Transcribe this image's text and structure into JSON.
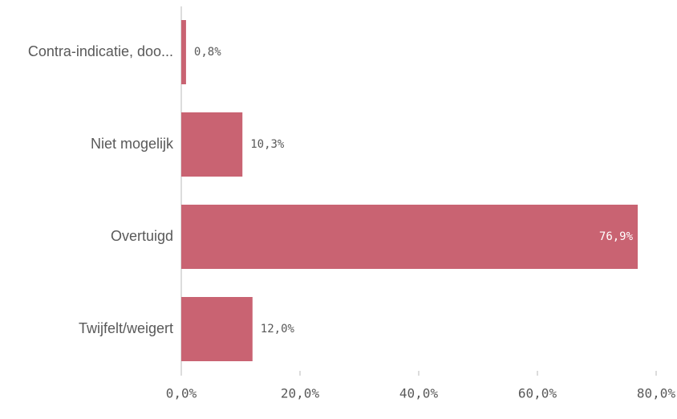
{
  "colors": {
    "bar": "#c96372",
    "axis": "#d0d0d0",
    "text": "#595959",
    "label_inside": "#ffffff"
  },
  "chart_data": {
    "type": "bar",
    "orientation": "horizontal",
    "categories": [
      "Contra-indicatie, doo...",
      "Niet mogelijk",
      "Overtuigd",
      "Twijfelt/weigert"
    ],
    "values": [
      0.8,
      10.3,
      76.9,
      12.0
    ],
    "value_labels": [
      "0,8%",
      "10,3%",
      "76,9%",
      "12,0%"
    ],
    "xlim": [
      0,
      80
    ],
    "x_ticks": [
      0,
      20,
      40,
      60,
      80
    ],
    "x_tick_labels": [
      "0,0%",
      "20,0%",
      "40,0%",
      "60,0%",
      "80,0%"
    ],
    "grid": false,
    "legend": "none"
  }
}
